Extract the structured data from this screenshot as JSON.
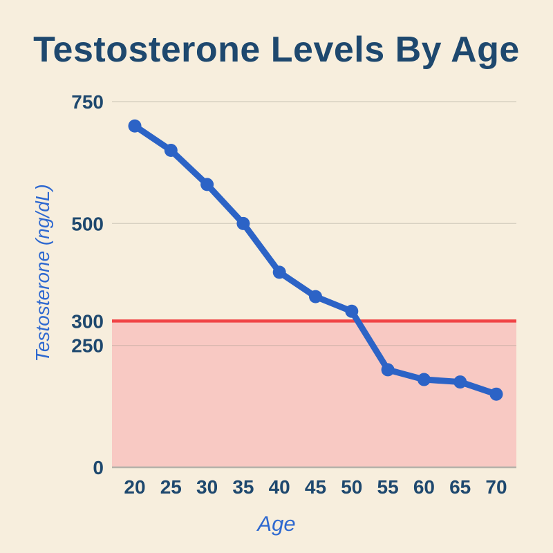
{
  "chart_data": {
    "type": "line",
    "title": "Testosterone Levels By Age",
    "xlabel": "Age",
    "ylabel": "Testosterone (ng/dL)",
    "x": [
      20,
      25,
      30,
      35,
      40,
      45,
      50,
      55,
      60,
      65,
      70
    ],
    "values": [
      700,
      650,
      580,
      500,
      400,
      350,
      320,
      200,
      180,
      175,
      150
    ],
    "ylim": [
      0,
      750
    ],
    "xlim": [
      20,
      70
    ],
    "y_ticks": [
      750,
      500,
      300,
      250,
      0
    ],
    "gridline_values": [
      750,
      500,
      250
    ],
    "x_ticks": [
      20,
      25,
      30,
      35,
      40,
      45,
      50,
      55,
      60,
      65,
      70
    ],
    "threshold_value": 300,
    "legend": "none",
    "grid": "horizontal",
    "colors": {
      "background": "#f7eedd",
      "title_text": "#1e486e",
      "tick_text": "#1e486e",
      "line": "#2c63c6",
      "marker": "#2c63c6",
      "axis_title_text": "#2f69d0",
      "threshold_line": "#f04446",
      "threshold_fill": "#f8c9c3",
      "gridline": "#8a877f",
      "axis_line": "#b5b2aa"
    }
  }
}
